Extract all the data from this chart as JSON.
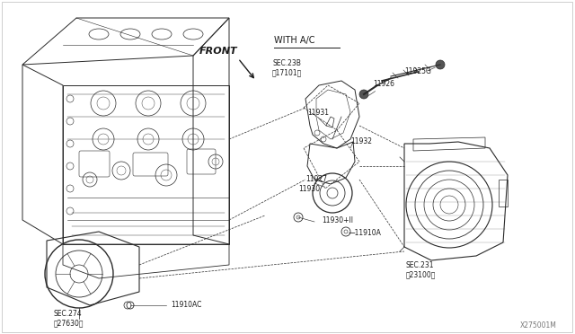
{
  "bg_color": "#ffffff",
  "lc": "#2a2a2a",
  "tc": "#1a1a1a",
  "fig_width": 6.4,
  "fig_height": 3.72,
  "dpi": 100,
  "watermark": "X275001M",
  "with_ac": "WITH A/C",
  "front_label": "FRONT",
  "sec_23b_line1": "SEC.23B",
  "sec_23b_line2": "】17101】",
  "sec_231_line1": "SEC.231",
  "sec_231_line2": "】23100】",
  "sec_274_line1": "SEC.274",
  "sec_274_line2": "】27630】",
  "p11926": "11926",
  "p11925G": "11925G",
  "p11931": "11931",
  "p11932": "11932",
  "p11927": "11927",
  "p11930": "11930",
  "p11930I": "11930+II",
  "p11910A": "11910A",
  "p11910AC": "11910AC",
  "font_small": 5.5,
  "font_label": 6.5,
  "font_front": 7.5
}
